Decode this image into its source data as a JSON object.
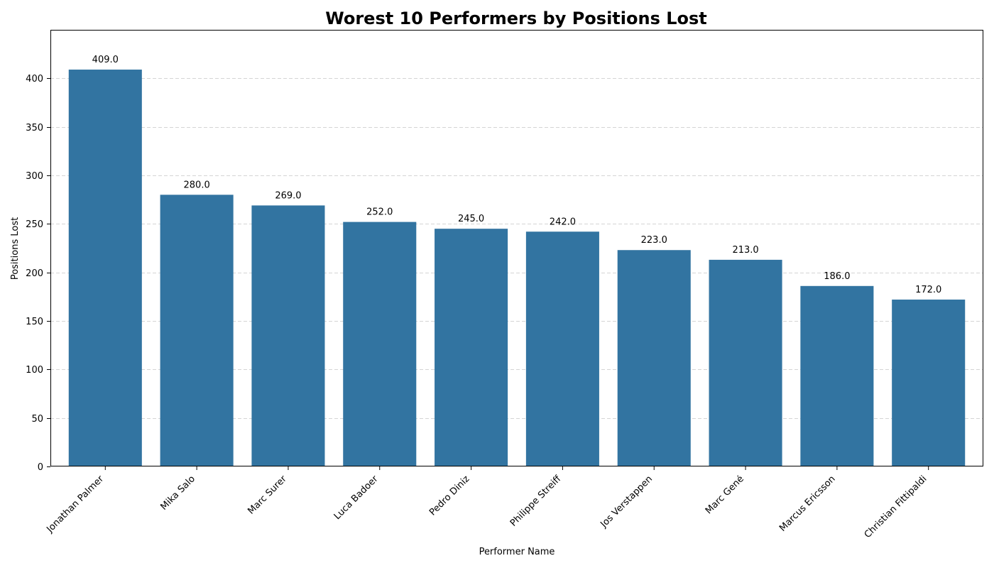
{
  "chart_data": {
    "type": "bar",
    "title": "Worest 10 Performers by Positions Lost",
    "xlabel": "Performer Name",
    "ylabel": "Positions Lost",
    "categories": [
      "Jonathan Palmer",
      "Mika Salo",
      "Marc Surer",
      "Luca Badoer",
      "Pedro Diniz",
      "Philippe Streiff",
      "Jos Verstappen",
      "Marc Gené",
      "Marcus Ericsson",
      "Christian Fittipaldi"
    ],
    "values": [
      409,
      280,
      269,
      252,
      245,
      242,
      223,
      213,
      186,
      172
    ],
    "value_labels": [
      "409.0",
      "280.0",
      "269.0",
      "252.0",
      "245.0",
      "242.0",
      "223.0",
      "213.0",
      "186.0",
      "172.0"
    ],
    "ylim": [
      0,
      450
    ],
    "yticks": [
      0,
      50,
      100,
      150,
      200,
      250,
      300,
      350,
      400
    ],
    "grid": "y-dashed",
    "bar_color": "#3274a1"
  }
}
